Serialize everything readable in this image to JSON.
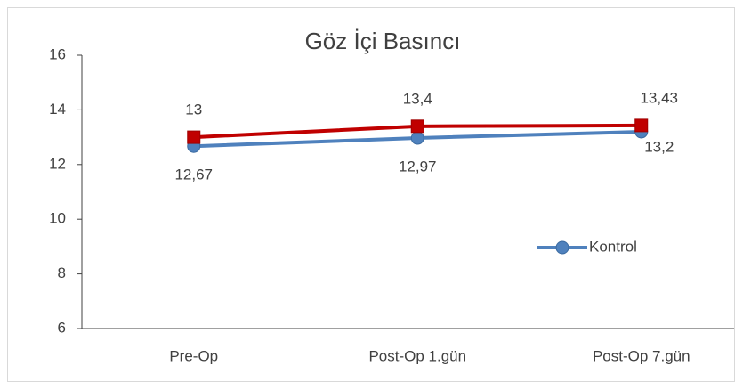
{
  "chart_data": {
    "type": "line",
    "title": "Göz İçi Basıncı",
    "categories": [
      "Pre-Op",
      "Post-Op 1.gün",
      "Post-Op 7.gün"
    ],
    "series": [
      {
        "name": "Kontrol",
        "color": "#4f81bd",
        "marker": "circle",
        "values": [
          12.67,
          12.97,
          13.2
        ],
        "value_labels": [
          "12,67",
          "12,97",
          "13,2"
        ]
      },
      {
        "color": "#c00000",
        "marker": "square",
        "values": [
          13,
          13.4,
          13.43
        ],
        "value_labels": [
          "13",
          "13,4",
          "13,43"
        ]
      }
    ],
    "ylim": [
      6,
      16
    ],
    "yticks": [
      6,
      8,
      10,
      12,
      14,
      16
    ],
    "grid": false,
    "legend": "right"
  }
}
